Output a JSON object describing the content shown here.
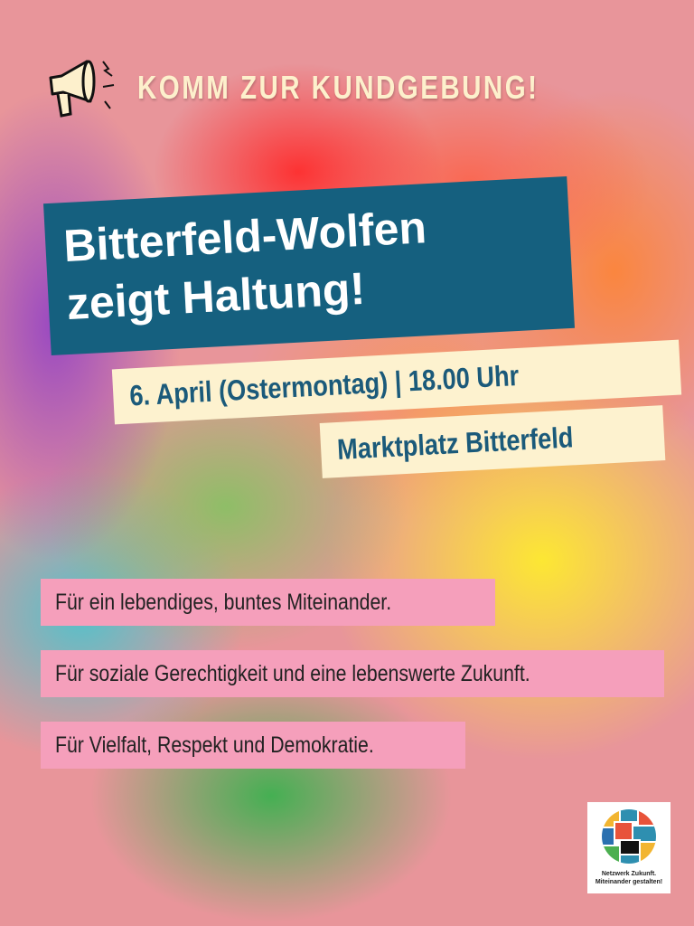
{
  "kicker": "KOMM ZUR KUNDGEBUNG!",
  "title": {
    "line1": "Bitterfeld-Wolfen",
    "line2": "zeigt Haltung!"
  },
  "date": "6. April (Ostermontag) | 18.00 Uhr",
  "location": "Marktplatz Bitterfeld",
  "statements": [
    "Für ein lebendiges, buntes Miteinander.",
    "Für soziale Gerechtigkeit und eine lebenswerte Zukunft.",
    "Für Vielfalt, Respekt und Demokratie."
  ],
  "logo": {
    "line1": "Netzwerk Zukunft.",
    "line2": "Miteinander gestalten!"
  },
  "colors": {
    "title_bg": "#15607f",
    "cream": "#fdf2cf",
    "pink": "#f59fbb",
    "background": "#e8959a"
  },
  "icons": {
    "kicker": "megaphone-icon"
  }
}
